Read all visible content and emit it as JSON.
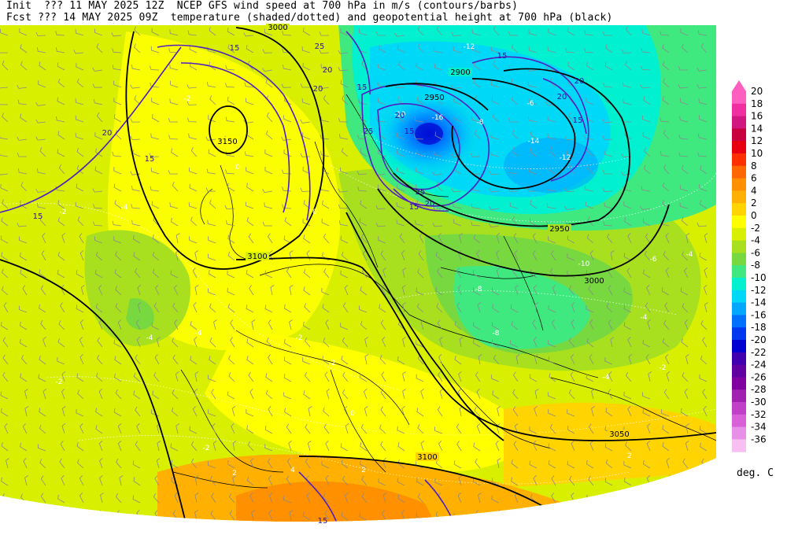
{
  "header": {
    "line1": "Init  ??? 11 MAY 2025 12Z  NCEP GFS wind speed at 700 hPa in m/s (contours/barbs)",
    "line2": "Fcst ??? 14 MAY 2025 09Z  temperature (shaded/dotted) and geopotential height at 700 hPa (black)"
  },
  "colorbar": {
    "unit": "deg. C",
    "levels": [
      {
        "label": "20",
        "color": "#ff60c0"
      },
      {
        "label": "18",
        "color": "#f030a0"
      },
      {
        "label": "16",
        "color": "#d01880"
      },
      {
        "label": "14",
        "color": "#c80040"
      },
      {
        "label": "12",
        "color": "#e80010"
      },
      {
        "label": "10",
        "color": "#ff3000"
      },
      {
        "label": "8",
        "color": "#ff6800"
      },
      {
        "label": "6",
        "color": "#ff9000"
      },
      {
        "label": "4",
        "color": "#ffb000"
      },
      {
        "label": "2",
        "color": "#ffd400"
      },
      {
        "label": "0",
        "color": "#ffff00"
      },
      {
        "label": "-2",
        "color": "#d8f000"
      },
      {
        "label": "-4",
        "color": "#a8e020"
      },
      {
        "label": "-6",
        "color": "#78d840"
      },
      {
        "label": "-8",
        "color": "#40e880"
      },
      {
        "label": "-10",
        "color": "#00f0d0"
      },
      {
        "label": "-12",
        "color": "#00d8f8"
      },
      {
        "label": "-14",
        "color": "#00a8ff"
      },
      {
        "label": "-16",
        "color": "#0070ff"
      },
      {
        "label": "-18",
        "color": "#0038f0"
      },
      {
        "label": "-20",
        "color": "#0000d0"
      },
      {
        "label": "-22",
        "color": "#4000b0"
      },
      {
        "label": "-24",
        "color": "#6000a0"
      },
      {
        "label": "-26",
        "color": "#8000a0"
      },
      {
        "label": "-28",
        "color": "#a020b0"
      },
      {
        "label": "-30",
        "color": "#c040c8"
      },
      {
        "label": "-32",
        "color": "#d860d8"
      },
      {
        "label": "-34",
        "color": "#e890e8"
      },
      {
        "label": "-36",
        "color": "#f8c0f0"
      }
    ]
  },
  "height_labels": [
    "3150",
    "3100",
    "3100",
    "3050",
    "3000",
    "2950",
    "2950",
    "2900",
    "3000"
  ],
  "temp_labels": [
    "-2",
    "-2",
    "-4",
    "-4",
    "-4",
    "-2",
    "0",
    "0",
    "-2",
    "-2",
    "-6",
    "-8",
    "-10",
    "-12",
    "-14",
    "-16",
    "-12",
    "-10",
    "-8",
    "-8",
    "-6",
    "-4",
    "-4",
    "-2",
    "0",
    "2",
    "2",
    "4",
    "2",
    "-2",
    "-4"
  ],
  "wind_labels": [
    "15",
    "15",
    "20",
    "25",
    "20",
    "15",
    "25",
    "20",
    "15",
    "25",
    "15",
    "20",
    "20",
    "20",
    "15",
    "15",
    "15",
    "20",
    "15"
  ]
}
